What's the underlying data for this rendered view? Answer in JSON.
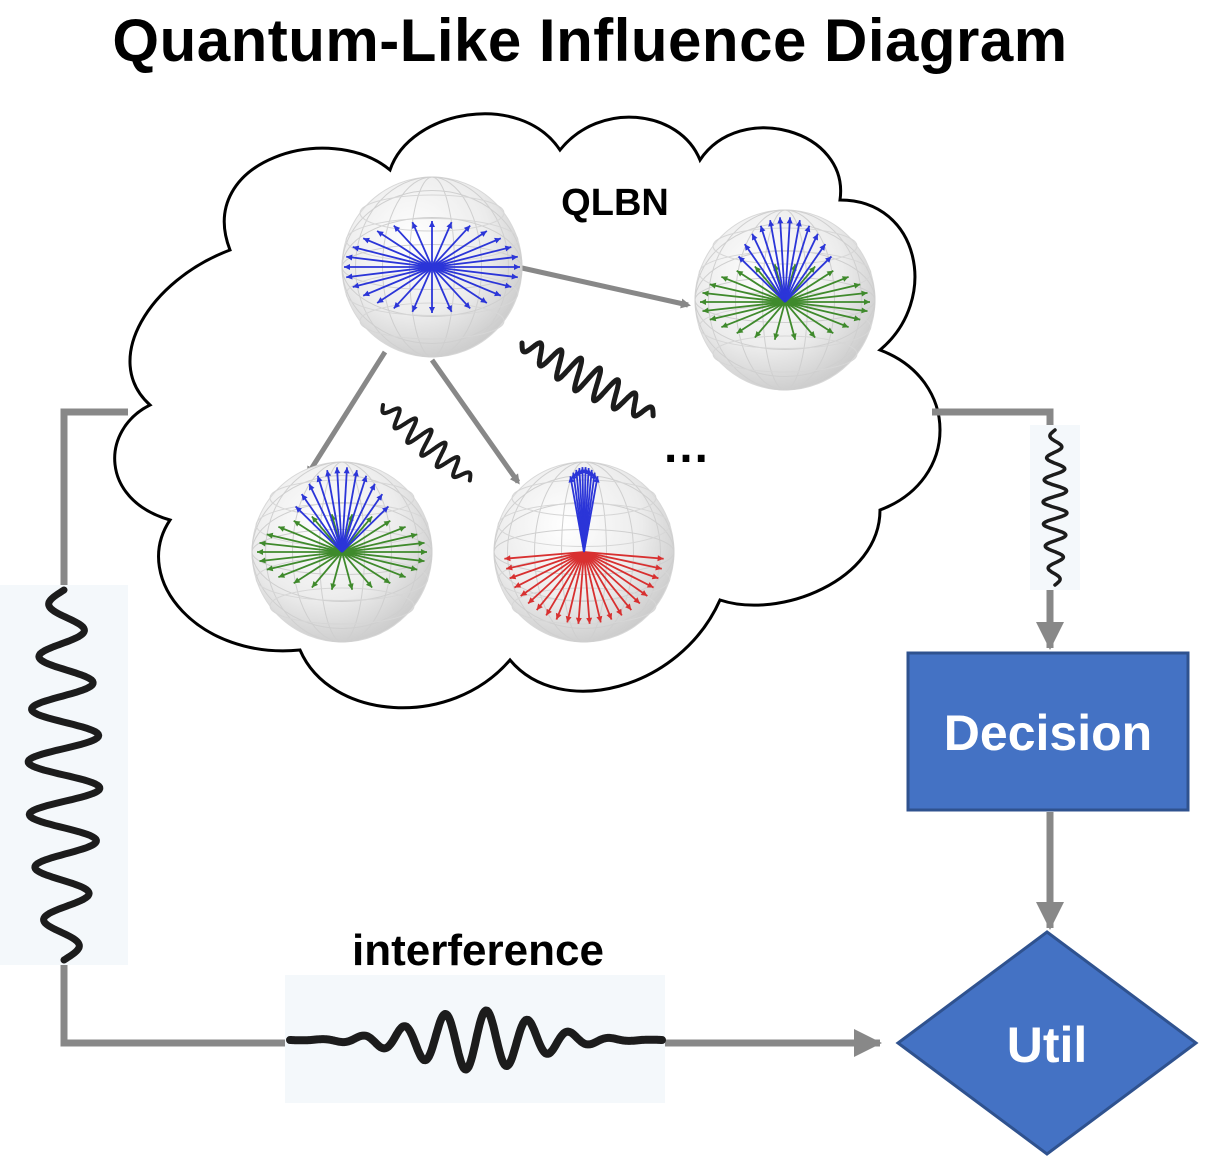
{
  "title": "Quantum-Like Influence Diagram",
  "cloud_label": "QLBN",
  "ellipsis": "…",
  "decision_label": "Decision",
  "util_label": "Util",
  "interference_label": "interference",
  "colors": {
    "node_fill": "#4472C4",
    "node_stroke": "#2F528F",
    "arrow_gray": "#888888",
    "vector_blue": "#2b35d8",
    "vector_green": "#3f8a2c",
    "vector_red": "#d83030"
  }
}
